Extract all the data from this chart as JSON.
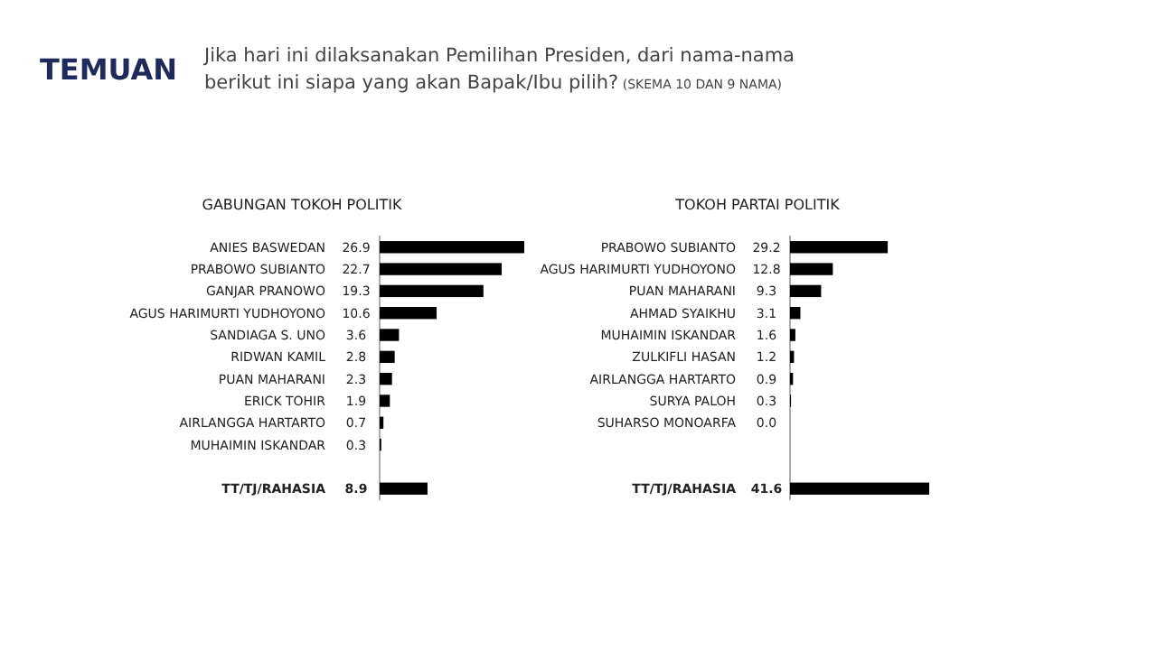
{
  "chart_data": [
    {
      "type": "bar",
      "orientation": "horizontal",
      "title": "GABUNGAN TOKOH POLITIK",
      "annotations": [
        "TEMUAN",
        "Jika hari ini dilaksanakan Pemilihan Presiden, dari nama-nama berikut ini siapa yang akan Bapak/Ibu pilih?",
        "(SKEMA 10 DAN 9 NAMA)"
      ],
      "categories": [
        "ANIES BASWEDAN",
        "PRABOWO SUBIANTO",
        "GANJAR PRANOWO",
        "AGUS HARIMURTI YUDHOYONO",
        "SANDIAGA S. UNO",
        "RIDWAN KAMIL",
        "PUAN MAHARANI",
        "ERICK TOHIR",
        "AIRLANGGA HARTARTO",
        "MUHAIMIN ISKANDAR",
        null,
        "TT/TJ/RAHASIA"
      ],
      "values": [
        26.9,
        22.7,
        19.3,
        10.6,
        3.6,
        2.8,
        2.3,
        1.9,
        0.7,
        0.3,
        null,
        8.9
      ],
      "color": "#000000",
      "data_labels": true
    },
    {
      "type": "bar",
      "orientation": "horizontal",
      "title": "TOKOH PARTAI POLITIK",
      "categories": [
        "PRABOWO SUBIANTO",
        "AGUS HARIMURTI YUDHOYONO",
        "PUAN MAHARANI",
        "AHMAD SYAIKHU",
        "MUHAIMIN ISKANDAR",
        "ZULKIFLI HASAN",
        "AIRLANGGA HARTARTO",
        "SURYA PALOH",
        "SUHARSO MONOARFA",
        null,
        null,
        "TT/TJ/RAHASIA"
      ],
      "values": [
        29.2,
        12.8,
        9.3,
        3.1,
        1.6,
        1.2,
        0.9,
        0.3,
        0.0,
        null,
        null,
        41.6
      ],
      "color": "#000000",
      "value_labels": [
        "29.2",
        "12.8",
        "9.3",
        "3.1",
        "1.6",
        "1.2",
        "0.9",
        "0.3",
        "0.0",
        null,
        null,
        "41.6"
      ]
    }
  ]
}
